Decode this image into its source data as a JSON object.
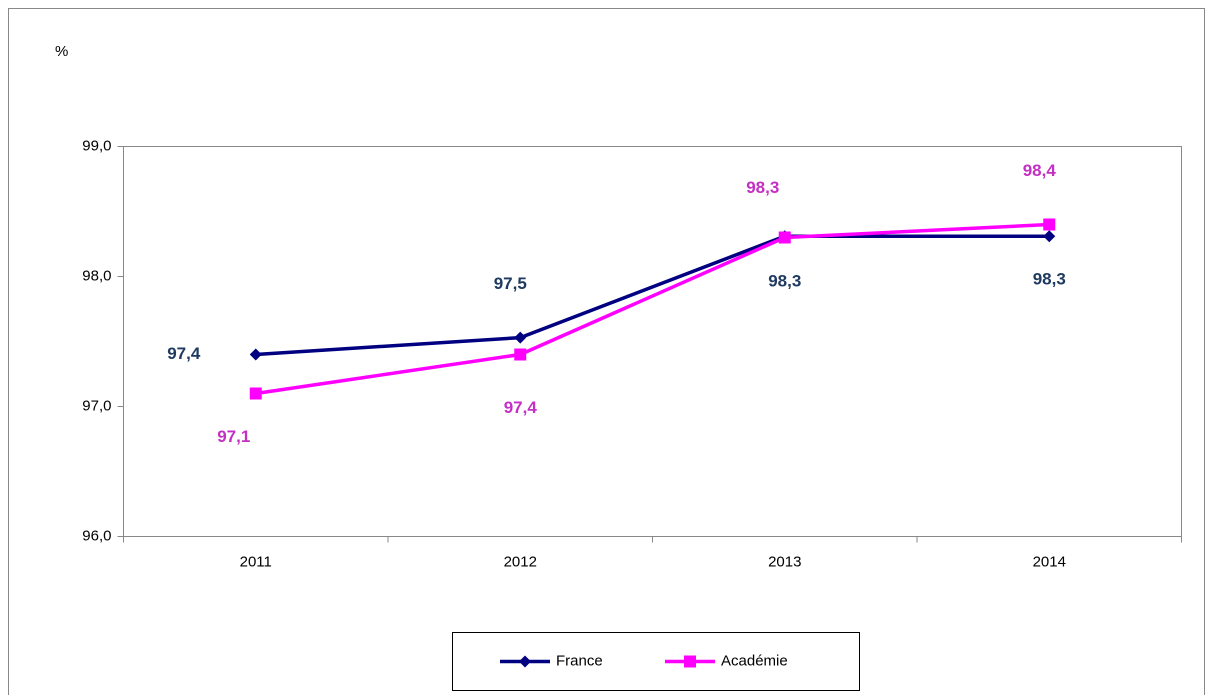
{
  "chart_data": {
    "type": "line",
    "y_label": "%",
    "categories": [
      "2011",
      "2012",
      "2013",
      "2014"
    ],
    "series": [
      {
        "name": "France",
        "color": "#000080",
        "label_color": "#1f3a60",
        "marker": "diamond",
        "values": [
          97.4,
          97.53,
          98.31,
          98.31
        ],
        "value_labels": [
          "97,4",
          "97,5",
          "98,3",
          "98,3"
        ]
      },
      {
        "name": "Académie",
        "color": "#ff00ff",
        "label_color": "#c42fc4",
        "marker": "square",
        "values": [
          97.1,
          97.4,
          98.3,
          98.4
        ],
        "value_labels": [
          "97,1",
          "97,4",
          "98,3",
          "98,4"
        ]
      }
    ],
    "ylim": [
      96,
      99
    ],
    "yticks": [
      {
        "value": 96,
        "label": "96,0"
      },
      {
        "value": 97,
        "label": "97,0"
      },
      {
        "value": 98,
        "label": "98,0"
      },
      {
        "value": 99,
        "label": "99,0"
      }
    ],
    "grid": false,
    "legend": "bottom"
  }
}
